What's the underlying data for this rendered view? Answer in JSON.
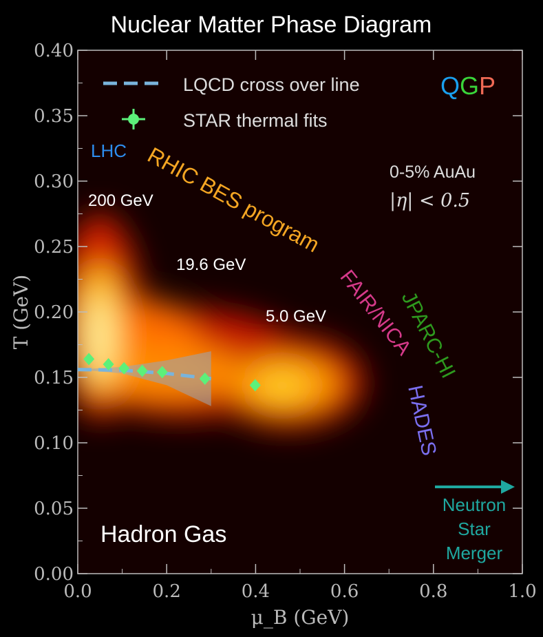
{
  "chart_data": {
    "type": "scatter",
    "title": "Nuclear Matter Phase Diagram",
    "xlabel": "μ_B (GeV)",
    "ylabel": "T (GeV)",
    "xlim": [
      0.0,
      1.0
    ],
    "ylim": [
      0.0,
      0.4
    ],
    "xticks": [
      "0.0",
      "0.2",
      "0.4",
      "0.6",
      "0.8",
      "1.0"
    ],
    "yticks": [
      "0.00",
      "0.05",
      "0.10",
      "0.15",
      "0.20",
      "0.25",
      "0.30",
      "0.35",
      "0.40"
    ],
    "grid": false,
    "legend_position": "top-left",
    "legend": [
      {
        "label": "LQCD cross over line",
        "style": "dashed-line",
        "color": "#79b4dc"
      },
      {
        "label": "STAR thermal fits",
        "style": "marker-errorbar",
        "color": "#5cf07a"
      }
    ],
    "series": [
      {
        "name": "STAR thermal fits",
        "points": [
          {
            "x": 0.025,
            "y": 0.164
          },
          {
            "x": 0.069,
            "y": 0.16
          },
          {
            "x": 0.104,
            "y": 0.157
          },
          {
            "x": 0.145,
            "y": 0.155
          },
          {
            "x": 0.19,
            "y": 0.154
          },
          {
            "x": 0.286,
            "y": 0.149
          },
          {
            "x": 0.399,
            "y": 0.144
          }
        ]
      },
      {
        "name": "LQCD cross over line",
        "points": [
          {
            "x": 0.0,
            "y": 0.156
          },
          {
            "x": 0.1,
            "y": 0.1555
          },
          {
            "x": 0.2,
            "y": 0.153
          },
          {
            "x": 0.3,
            "y": 0.149
          }
        ],
        "band_upper": [
          0.156,
          0.158,
          0.163,
          0.17
        ],
        "band_lower": [
          0.156,
          0.153,
          0.144,
          0.128
        ]
      }
    ],
    "annotations": {
      "qgp": [
        "Q",
        "G",
        "P"
      ],
      "lhc": "LHC",
      "rhic": "RHIC BES program",
      "fair": "FAIR/NICA",
      "jparc": "JPARC-HI",
      "hades": "HADES",
      "e200": "200 GeV",
      "e196": "19.6 GeV",
      "e50": "5.0 GeV",
      "auau": "0-5% AuAu",
      "eta": "|η| < 0.5",
      "hadron": "Hadron Gas",
      "neutron": [
        "Neutron",
        "Star",
        "Merger"
      ]
    },
    "colors": {
      "qgp_q": "#1aa0f0",
      "qgp_g": "#3ad63a",
      "qgp_p": "#f06a55",
      "lhc": "#2e8ef0",
      "rhic": "#f5a623",
      "fair": "#d63a8a",
      "jparc": "#2e9a1e",
      "hades": "#7b6ff0",
      "neutron": "#1fa8a0"
    }
  }
}
